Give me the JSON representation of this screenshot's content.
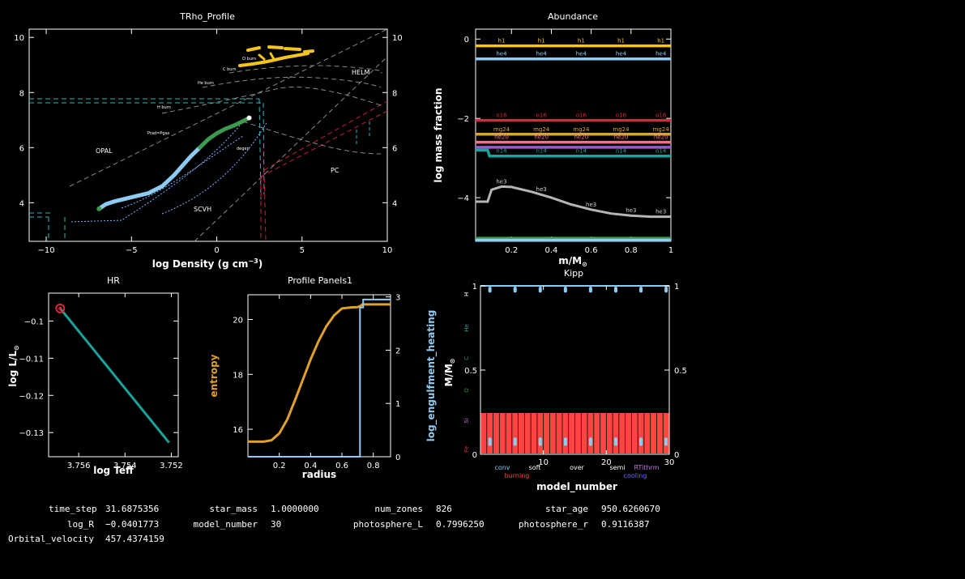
{
  "chart_data": [
    {
      "type": "line",
      "title": "TRho_Profile",
      "xlabel": "log Density (g cm",
      "xlabel_exp": "−3",
      "xlabel_close": ")",
      "ylabel": "",
      "xlim": [
        -11,
        10
      ],
      "ylim": [
        2.6,
        10.3
      ],
      "x_ticks": [
        "−10",
        "−5",
        "0",
        "5",
        "10"
      ],
      "y_ticks": [
        "4",
        "6",
        "8",
        "10"
      ],
      "y2_ticks": [
        "4",
        "6",
        "8",
        "10"
      ],
      "region_labels": {
        "opal": "OPAL",
        "scvh": "SCVH",
        "helm": "HELM",
        "pc": "PC"
      },
      "burn_labels": {
        "h": "H burn",
        "he": "He burn",
        "c": "C burn",
        "o": "O burn"
      },
      "small_labels": {
        "prad": "Prad=Pgas",
        "degen": "degen"
      },
      "series": [
        {
          "name": "profile-blue",
          "color": "#8ecbf2",
          "x": [
            -6.9,
            -6.5,
            -6.0,
            -5.0,
            -4.0,
            -3.2,
            -2.5,
            -2.0,
            -1.5,
            -1.0
          ],
          "y": [
            3.78,
            3.95,
            4.05,
            4.2,
            4.35,
            4.6,
            5.0,
            5.35,
            5.7,
            6.0
          ]
        },
        {
          "name": "profile-green",
          "color": "#3c9a50",
          "x": [
            -1.0,
            -0.5,
            0.0,
            0.5,
            1.0,
            1.5,
            1.9
          ],
          "y": [
            6.0,
            6.3,
            6.52,
            6.68,
            6.8,
            6.95,
            7.08
          ]
        }
      ]
    },
    {
      "type": "line",
      "title": "Abundance",
      "xlabel": "m/M",
      "xlabel_sub": "⊙",
      "ylabel": "log mass fraction",
      "xlim": [
        0.02,
        1.0
      ],
      "ylim": [
        -5.1,
        0.25
      ],
      "x_ticks": [
        "0.2",
        "0.4",
        "0.6",
        "0.8",
        "1"
      ],
      "y_ticks": [
        "0",
        "−2",
        "−4"
      ],
      "series": [
        {
          "name": "h1",
          "color": "#f5c518",
          "x": [
            0.02,
            1.0
          ],
          "y": [
            -0.17,
            -0.17
          ]
        },
        {
          "name": "he4",
          "color": "#8ecbf2",
          "x": [
            0.02,
            1.0
          ],
          "y": [
            -0.5,
            -0.5
          ]
        },
        {
          "name": "o16",
          "color": "#d7263d",
          "x": [
            0.02,
            1.0
          ],
          "y": [
            -2.05,
            -2.05
          ]
        },
        {
          "name": "mg24",
          "color": "#d8a23c",
          "x": [
            0.02,
            1.0
          ],
          "y": [
            -2.4,
            -2.4
          ]
        },
        {
          "name": "ne20",
          "color": "#f07088",
          "x": [
            0.02,
            1.0
          ],
          "y": [
            -2.6,
            -2.6
          ]
        },
        {
          "name": "ne20b",
          "color": "#9b59d0",
          "x": [
            0.02,
            1.0
          ],
          "y": [
            -2.73,
            -2.73
          ]
        },
        {
          "name": "n14",
          "color": "#1aa39a",
          "x": [
            0.02,
            0.08,
            0.09,
            1.0
          ],
          "y": [
            -2.8,
            -2.8,
            -2.95,
            -2.95
          ]
        },
        {
          "name": "he3",
          "color": "#b5b5b5",
          "x": [
            0.02,
            0.08,
            0.1,
            0.15,
            0.2,
            0.3,
            0.4,
            0.5,
            0.6,
            0.7,
            0.8,
            0.9,
            1.0
          ],
          "y": [
            -4.1,
            -4.1,
            -3.8,
            -3.72,
            -3.73,
            -3.85,
            -4.0,
            -4.17,
            -4.3,
            -4.4,
            -4.45,
            -4.48,
            -4.48
          ]
        },
        {
          "name": "bottom-green",
          "color": "#3c9a50",
          "x": [
            0.02,
            1.0
          ],
          "y": [
            -5.02,
            -5.02
          ]
        },
        {
          "name": "bottom-blue",
          "color": "#8ecbf2",
          "x": [
            0.02,
            1.0
          ],
          "y": [
            -5.07,
            -5.07
          ]
        }
      ],
      "line_labels": [
        "h1",
        "he4",
        "o16",
        "mg24",
        "ne20",
        "n14",
        "he3"
      ]
    },
    {
      "type": "line",
      "title": "HR",
      "xlabel": "log Teff",
      "ylabel": "log L/L",
      "ylabel_sub": "⊙",
      "xlim": [
        3.7573,
        3.7517
      ],
      "ylim": [
        -0.1365,
        -0.0925
      ],
      "x_ticks": [
        "3.756",
        "3.754",
        "3.752"
      ],
      "x_tick_values": [
        3.756,
        3.754,
        3.752
      ],
      "y_ticks": [
        "−0.1",
        "−0.11",
        "−0.12",
        "−0.13"
      ],
      "y_tick_values": [
        -0.1,
        -0.11,
        -0.12,
        -0.13
      ],
      "series": [
        {
          "name": "track",
          "color": "#1aa39a",
          "x": [
            3.7568,
            3.7521
          ],
          "y": [
            -0.0966,
            -0.1327
          ]
        }
      ],
      "current_point": {
        "x": 3.7568,
        "y": -0.0966,
        "color": "#d7263d"
      }
    },
    {
      "type": "line",
      "title": "Profile Panels1",
      "xlabel": "radius",
      "ylabel": "entropy",
      "y2label": "log_engulfment_heating",
      "xlim": [
        0.0,
        0.91
      ],
      "ylim": [
        15.0,
        20.9
      ],
      "y2lim": [
        0,
        3.04
      ],
      "x_ticks": [
        "0.2",
        "0.4",
        "0.6",
        "0.8"
      ],
      "x_tick_values": [
        0.2,
        0.4,
        0.6,
        0.8
      ],
      "y_ticks": [
        "16",
        "18",
        "20"
      ],
      "y_tick_values": [
        16,
        18,
        20
      ],
      "y2_ticks": [
        "0",
        "1",
        "2",
        "3"
      ],
      "y2_tick_values": [
        0,
        1,
        2,
        3
      ],
      "series": [
        {
          "name": "entropy",
          "color": "#e0a12a",
          "x": [
            0.0,
            0.1,
            0.15,
            0.2,
            0.25,
            0.3,
            0.35,
            0.4,
            0.45,
            0.5,
            0.55,
            0.6,
            0.63,
            0.66,
            0.7,
            0.72,
            0.73,
            0.75,
            0.91
          ],
          "y": [
            15.55,
            15.55,
            15.6,
            15.85,
            16.35,
            17.05,
            17.8,
            18.55,
            19.2,
            19.75,
            20.15,
            20.4,
            20.42,
            20.44,
            20.45,
            20.5,
            20.55,
            20.55,
            20.55
          ]
        },
        {
          "name": "log_engulfment_heating",
          "color": "#8ecbf2",
          "axis": "y2",
          "x": [
            0.0,
            0.715,
            0.715,
            0.735,
            0.735,
            0.91
          ],
          "y": [
            0,
            0,
            2.8,
            2.8,
            2.95,
            2.95
          ]
        }
      ]
    },
    {
      "type": "bar",
      "title": "Kipp",
      "xlabel": "model_number",
      "ylabel": "M/M",
      "ylabel_sub": "⊙",
      "xlim": [
        0,
        30
      ],
      "ylim": [
        0,
        1.0
      ],
      "x_ticks": [
        "10",
        "20",
        "30"
      ],
      "x_tick_values": [
        10,
        20,
        30
      ],
      "y_ticks": [
        "0",
        "0.5",
        "1"
      ],
      "y_tick_values": [
        0,
        0.5,
        1
      ],
      "y2_ticks": [
        "0",
        "0.5",
        "1"
      ],
      "left_labels": [
        "H",
        "He",
        "C",
        "O",
        "Si",
        "Fe"
      ],
      "left_label_colors": [
        "#ffffff",
        "#1aa39a",
        "#3c9a50",
        "#3c9a50",
        "#c07ae0",
        "#d7263d"
      ],
      "bar_top": 0.245,
      "legend": [
        {
          "label": "conv",
          "color": "#8ecbf2"
        },
        {
          "label": "burning",
          "color": "#ff4444"
        },
        {
          "label": "soft",
          "color": "#ffffff"
        },
        {
          "label": "over",
          "color": "#ffffff"
        },
        {
          "label": "semi",
          "color": "#ffffff"
        },
        {
          "label": "cooling",
          "color": "#6a6aff"
        },
        {
          "label": "RTithrm",
          "color": "#c07ae0"
        }
      ]
    }
  ],
  "info": {
    "time_step_label": "time_step",
    "time_step": "31.6875356",
    "log_R_label": "log_R",
    "log_R": "−0.0401773",
    "orbital_velocity_label": "Orbital_velocity",
    "orbital_velocity": "457.4374159",
    "star_mass_label": "star_mass",
    "star_mass": "1.0000000",
    "model_number_label": "model_number",
    "model_number": "30",
    "num_zones_label": "num_zones",
    "num_zones": "826",
    "photosphere_L_label": "photosphere_L",
    "photosphere_L": "0.7996250",
    "star_age_label": "star_age",
    "star_age": "950.6260670",
    "photosphere_r_label": "photosphere_r",
    "photosphere_r": "0.9116387"
  }
}
